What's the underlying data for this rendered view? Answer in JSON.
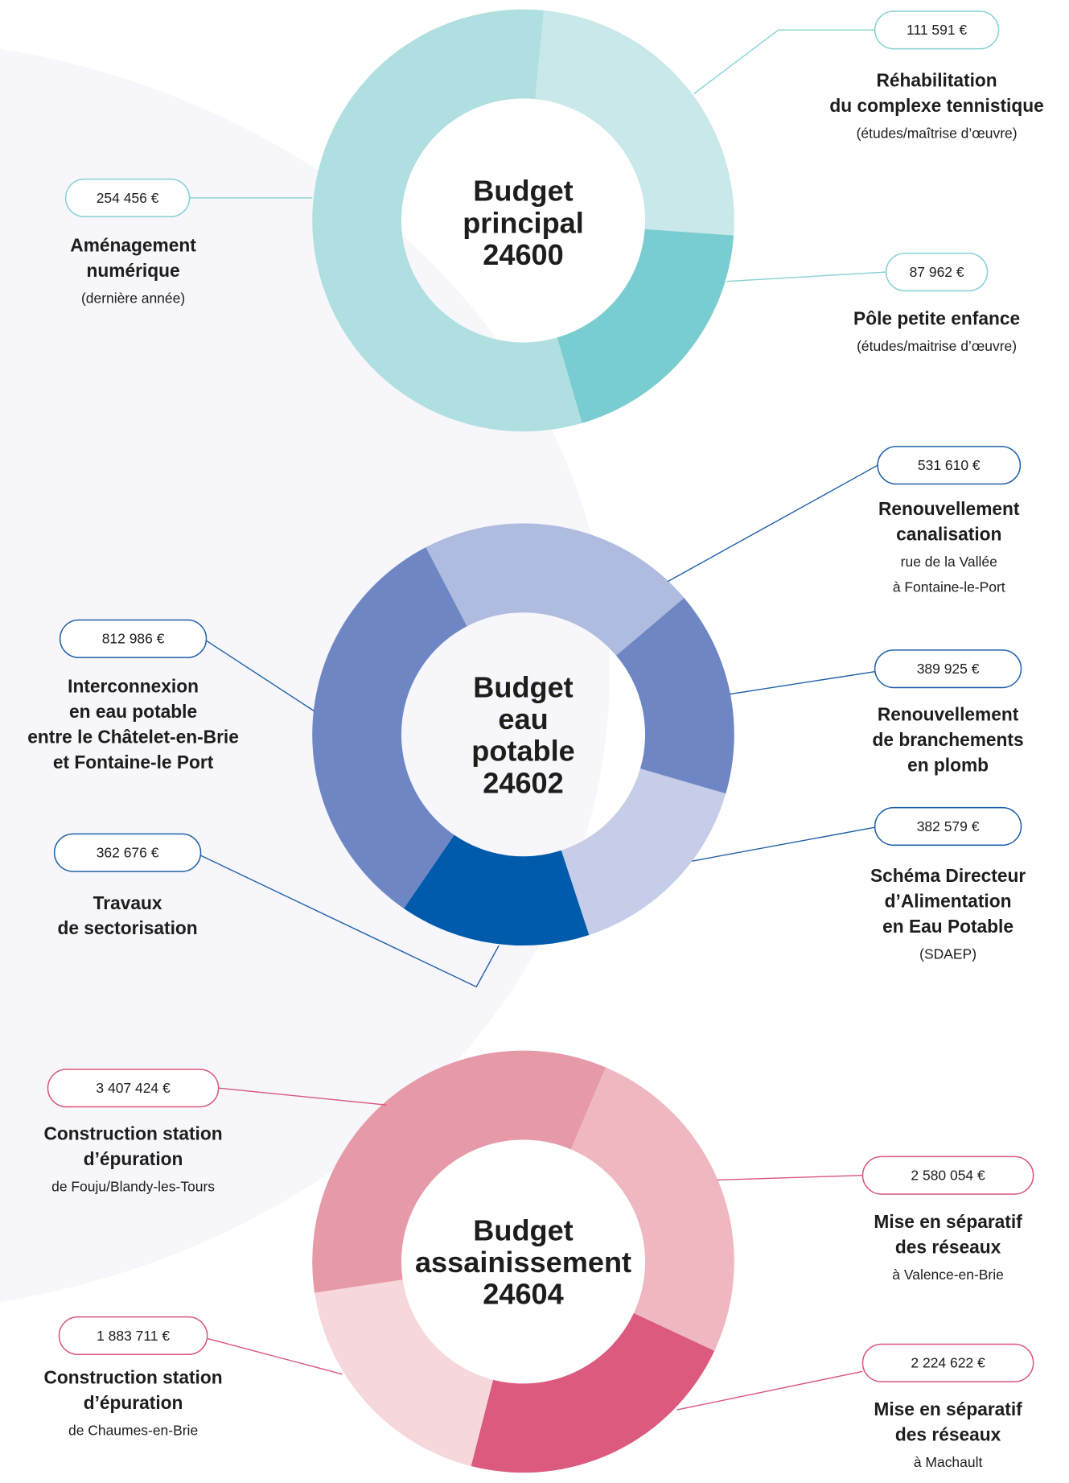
{
  "chart_data": [
    {
      "type": "donut",
      "title_lines": [
        "Budget",
        "principal",
        "24600"
      ],
      "callout_color": "#86d0d3",
      "values": [
        111591,
        87962,
        254456
      ],
      "value_labels": [
        "111 591 €",
        "87 962 €",
        "254 456 €"
      ],
      "colors": [
        "#c8e8ea",
        "#79cdd0",
        "#b0dfe1"
      ],
      "labels": [
        [
          "Réhabilitation",
          "du complexe tennistique"
        ],
        [
          "Pôle petite enfance"
        ],
        [
          "Aménagement",
          "numérique"
        ]
      ],
      "notes": [
        [
          "(études/maîtrise d’œuvre)"
        ],
        [
          "(études/maitrise d’œuvre)"
        ],
        [
          "(dernière année)"
        ]
      ]
    },
    {
      "type": "donut",
      "title_lines": [
        "Budget",
        "eau",
        "potable",
        "24602"
      ],
      "callout_color": "#1f5fa8",
      "values": [
        531610,
        389925,
        382579,
        362676,
        812986
      ],
      "value_labels": [
        "531 610 €",
        "389 925 €",
        "382 579 €",
        "362 676 €",
        "812 986 €"
      ],
      "colors": [
        "#afbbdf",
        "#6e87c4",
        "#c5cde8",
        "#005bac",
        "#6e87c4"
      ],
      "labels": [
        [
          "Renouvellement",
          "canalisation"
        ],
        [
          "Renouvellement",
          "de branchements",
          "en plomb"
        ],
        [
          "Schéma Directeur",
          "d’Alimentation",
          "en Eau Potable"
        ],
        [
          "Travaux",
          "de sectorisation"
        ],
        [
          "Interconnexion",
          "en eau potable",
          "entre le Châtelet-en-Brie",
          "et Fontaine-le Port"
        ]
      ],
      "notes": [
        [
          "rue de la Vallée",
          "à Fontaine-le-Port"
        ],
        [],
        [
          "(SDAEP)"
        ],
        [],
        []
      ]
    },
    {
      "type": "donut",
      "title_lines": [
        "Budget",
        "assainissement",
        "24604"
      ],
      "callout_color": "#d9567a",
      "values": [
        2580054,
        2224622,
        1883711,
        3407424
      ],
      "value_labels": [
        "2 580 054 €",
        "2 224 622 €",
        "1 883 711 €",
        "3 407 424 €"
      ],
      "colors": [
        "#efb8c0",
        "#db5a7d",
        "#f6d7dc",
        "#e699a7"
      ],
      "labels": [
        [
          "Mise en séparatif",
          "des réseaux"
        ],
        [
          "Mise en séparatif",
          "des réseaux"
        ],
        [
          "Construction station",
          "d’épuration"
        ],
        [
          "Construction station",
          "d’épuration"
        ]
      ],
      "notes": [
        [
          "à Valence-en-Brie"
        ],
        [
          "à Machault"
        ],
        [
          "de Chaumes-en-Brie"
        ],
        [
          "de Fouju/Blandy-les-Tours"
        ]
      ]
    }
  ]
}
